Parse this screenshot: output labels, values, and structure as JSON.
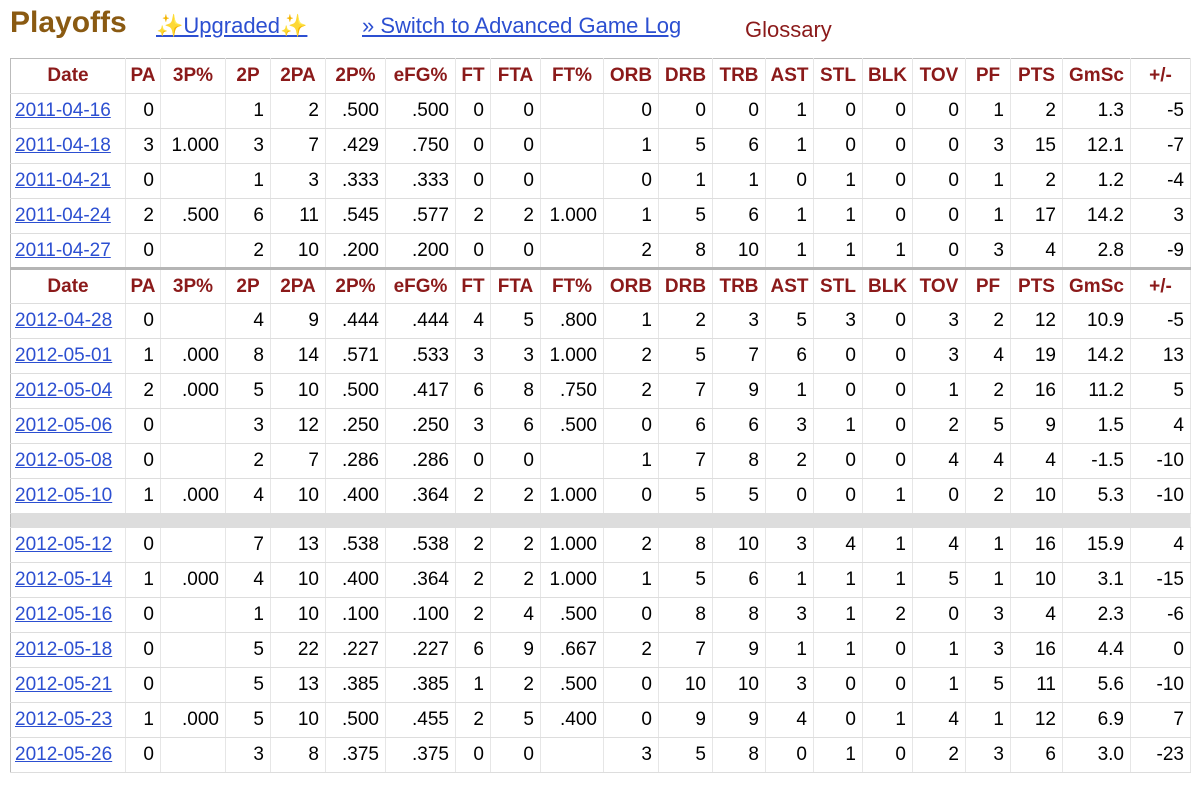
{
  "header": {
    "title": "Playoffs",
    "upgraded": "✨Upgraded✨",
    "switch_link": "» Switch to Advanced Game Log",
    "glossary": "Glossary"
  },
  "table": {
    "columns": [
      "Date",
      "PA",
      "3P%",
      "2P",
      "2PA",
      "2P%",
      "eFG%",
      "FT",
      "FTA",
      "FT%",
      "ORB",
      "DRB",
      "TRB",
      "AST",
      "STL",
      "BLK",
      "TOV",
      "PF",
      "PTS",
      "GmSc",
      "+/-"
    ],
    "sections": [
      {
        "rows": [
          [
            "2011-04-16",
            "0",
            null,
            "1",
            "2",
            ".500",
            ".500",
            "0",
            "0",
            null,
            "0",
            "0",
            "0",
            "1",
            "0",
            "0",
            "0",
            "1",
            "2",
            "1.3",
            "-5"
          ],
          [
            "2011-04-18",
            "3",
            "1.000",
            "3",
            "7",
            ".429",
            ".750",
            "0",
            "0",
            null,
            "1",
            "5",
            "6",
            "1",
            "0",
            "0",
            "0",
            "3",
            "15",
            "12.1",
            "-7"
          ],
          [
            "2011-04-21",
            "0",
            null,
            "1",
            "3",
            ".333",
            ".333",
            "0",
            "0",
            null,
            "0",
            "1",
            "1",
            "0",
            "1",
            "0",
            "0",
            "1",
            "2",
            "1.2",
            "-4"
          ],
          [
            "2011-04-24",
            "2",
            ".500",
            "6",
            "11",
            ".545",
            ".577",
            "2",
            "2",
            "1.000",
            "1",
            "5",
            "6",
            "1",
            "1",
            "0",
            "0",
            "1",
            "17",
            "14.2",
            "3"
          ],
          [
            "2011-04-27",
            "0",
            null,
            "2",
            "10",
            ".200",
            ".200",
            "0",
            "0",
            null,
            "2",
            "8",
            "10",
            "1",
            "1",
            "1",
            "0",
            "3",
            "4",
            "2.8",
            "-9"
          ]
        ]
      },
      {
        "rows": [
          [
            "2012-04-28",
            "0",
            null,
            "4",
            "9",
            ".444",
            ".444",
            "4",
            "5",
            ".800",
            "1",
            "2",
            "3",
            "5",
            "3",
            "0",
            "3",
            "2",
            "12",
            "10.9",
            "-5"
          ],
          [
            "2012-05-01",
            "1",
            ".000",
            "8",
            "14",
            ".571",
            ".533",
            "3",
            "3",
            "1.000",
            "2",
            "5",
            "7",
            "6",
            "0",
            "0",
            "3",
            "4",
            "19",
            "14.2",
            "13"
          ],
          [
            "2012-05-04",
            "2",
            ".000",
            "5",
            "10",
            ".500",
            ".417",
            "6",
            "8",
            ".750",
            "2",
            "7",
            "9",
            "1",
            "0",
            "0",
            "1",
            "2",
            "16",
            "11.2",
            "5"
          ],
          [
            "2012-05-06",
            "0",
            null,
            "3",
            "12",
            ".250",
            ".250",
            "3",
            "6",
            ".500",
            "0",
            "6",
            "6",
            "3",
            "1",
            "0",
            "2",
            "5",
            "9",
            "1.5",
            "4"
          ],
          [
            "2012-05-08",
            "0",
            null,
            "2",
            "7",
            ".286",
            ".286",
            "0",
            "0",
            null,
            "1",
            "7",
            "8",
            "2",
            "0",
            "0",
            "4",
            "4",
            "4",
            "-1.5",
            "-10"
          ],
          [
            "2012-05-10",
            "1",
            ".000",
            "4",
            "10",
            ".400",
            ".364",
            "2",
            "2",
            "1.000",
            "0",
            "5",
            "5",
            "0",
            "0",
            "1",
            "0",
            "2",
            "10",
            "5.3",
            "-10"
          ]
        ]
      },
      {
        "rows": [
          [
            "2012-05-12",
            "0",
            null,
            "7",
            "13",
            ".538",
            ".538",
            "2",
            "2",
            "1.000",
            "2",
            "8",
            "10",
            "3",
            "4",
            "1",
            "4",
            "1",
            "16",
            "15.9",
            "4"
          ],
          [
            "2012-05-14",
            "1",
            ".000",
            "4",
            "10",
            ".400",
            ".364",
            "2",
            "2",
            "1.000",
            "1",
            "5",
            "6",
            "1",
            "1",
            "1",
            "5",
            "1",
            "10",
            "3.1",
            "-15"
          ],
          [
            "2012-05-16",
            "0",
            null,
            "1",
            "10",
            ".100",
            ".100",
            "2",
            "4",
            ".500",
            "0",
            "8",
            "8",
            "3",
            "1",
            "2",
            "0",
            "3",
            "4",
            "2.3",
            "-6"
          ],
          [
            "2012-05-18",
            "0",
            null,
            "5",
            "22",
            ".227",
            ".227",
            "6",
            "9",
            ".667",
            "2",
            "7",
            "9",
            "1",
            "1",
            "0",
            "1",
            "3",
            "16",
            "4.4",
            "0"
          ],
          [
            "2012-05-21",
            "0",
            null,
            "5",
            "13",
            ".385",
            ".385",
            "1",
            "2",
            ".500",
            "0",
            "10",
            "10",
            "3",
            "0",
            "0",
            "1",
            "5",
            "11",
            "5.6",
            "-10"
          ],
          [
            "2012-05-23",
            "1",
            ".000",
            "5",
            "10",
            ".500",
            ".455",
            "2",
            "5",
            ".400",
            "0",
            "9",
            "9",
            "4",
            "0",
            "1",
            "4",
            "1",
            "12",
            "6.9",
            "7"
          ],
          [
            "2012-05-26",
            "0",
            null,
            "3",
            "8",
            ".375",
            ".375",
            "0",
            "0",
            null,
            "3",
            "5",
            "8",
            "0",
            "1",
            "0",
            "2",
            "3",
            "6",
            "3.0",
            "-23"
          ]
        ]
      }
    ]
  }
}
